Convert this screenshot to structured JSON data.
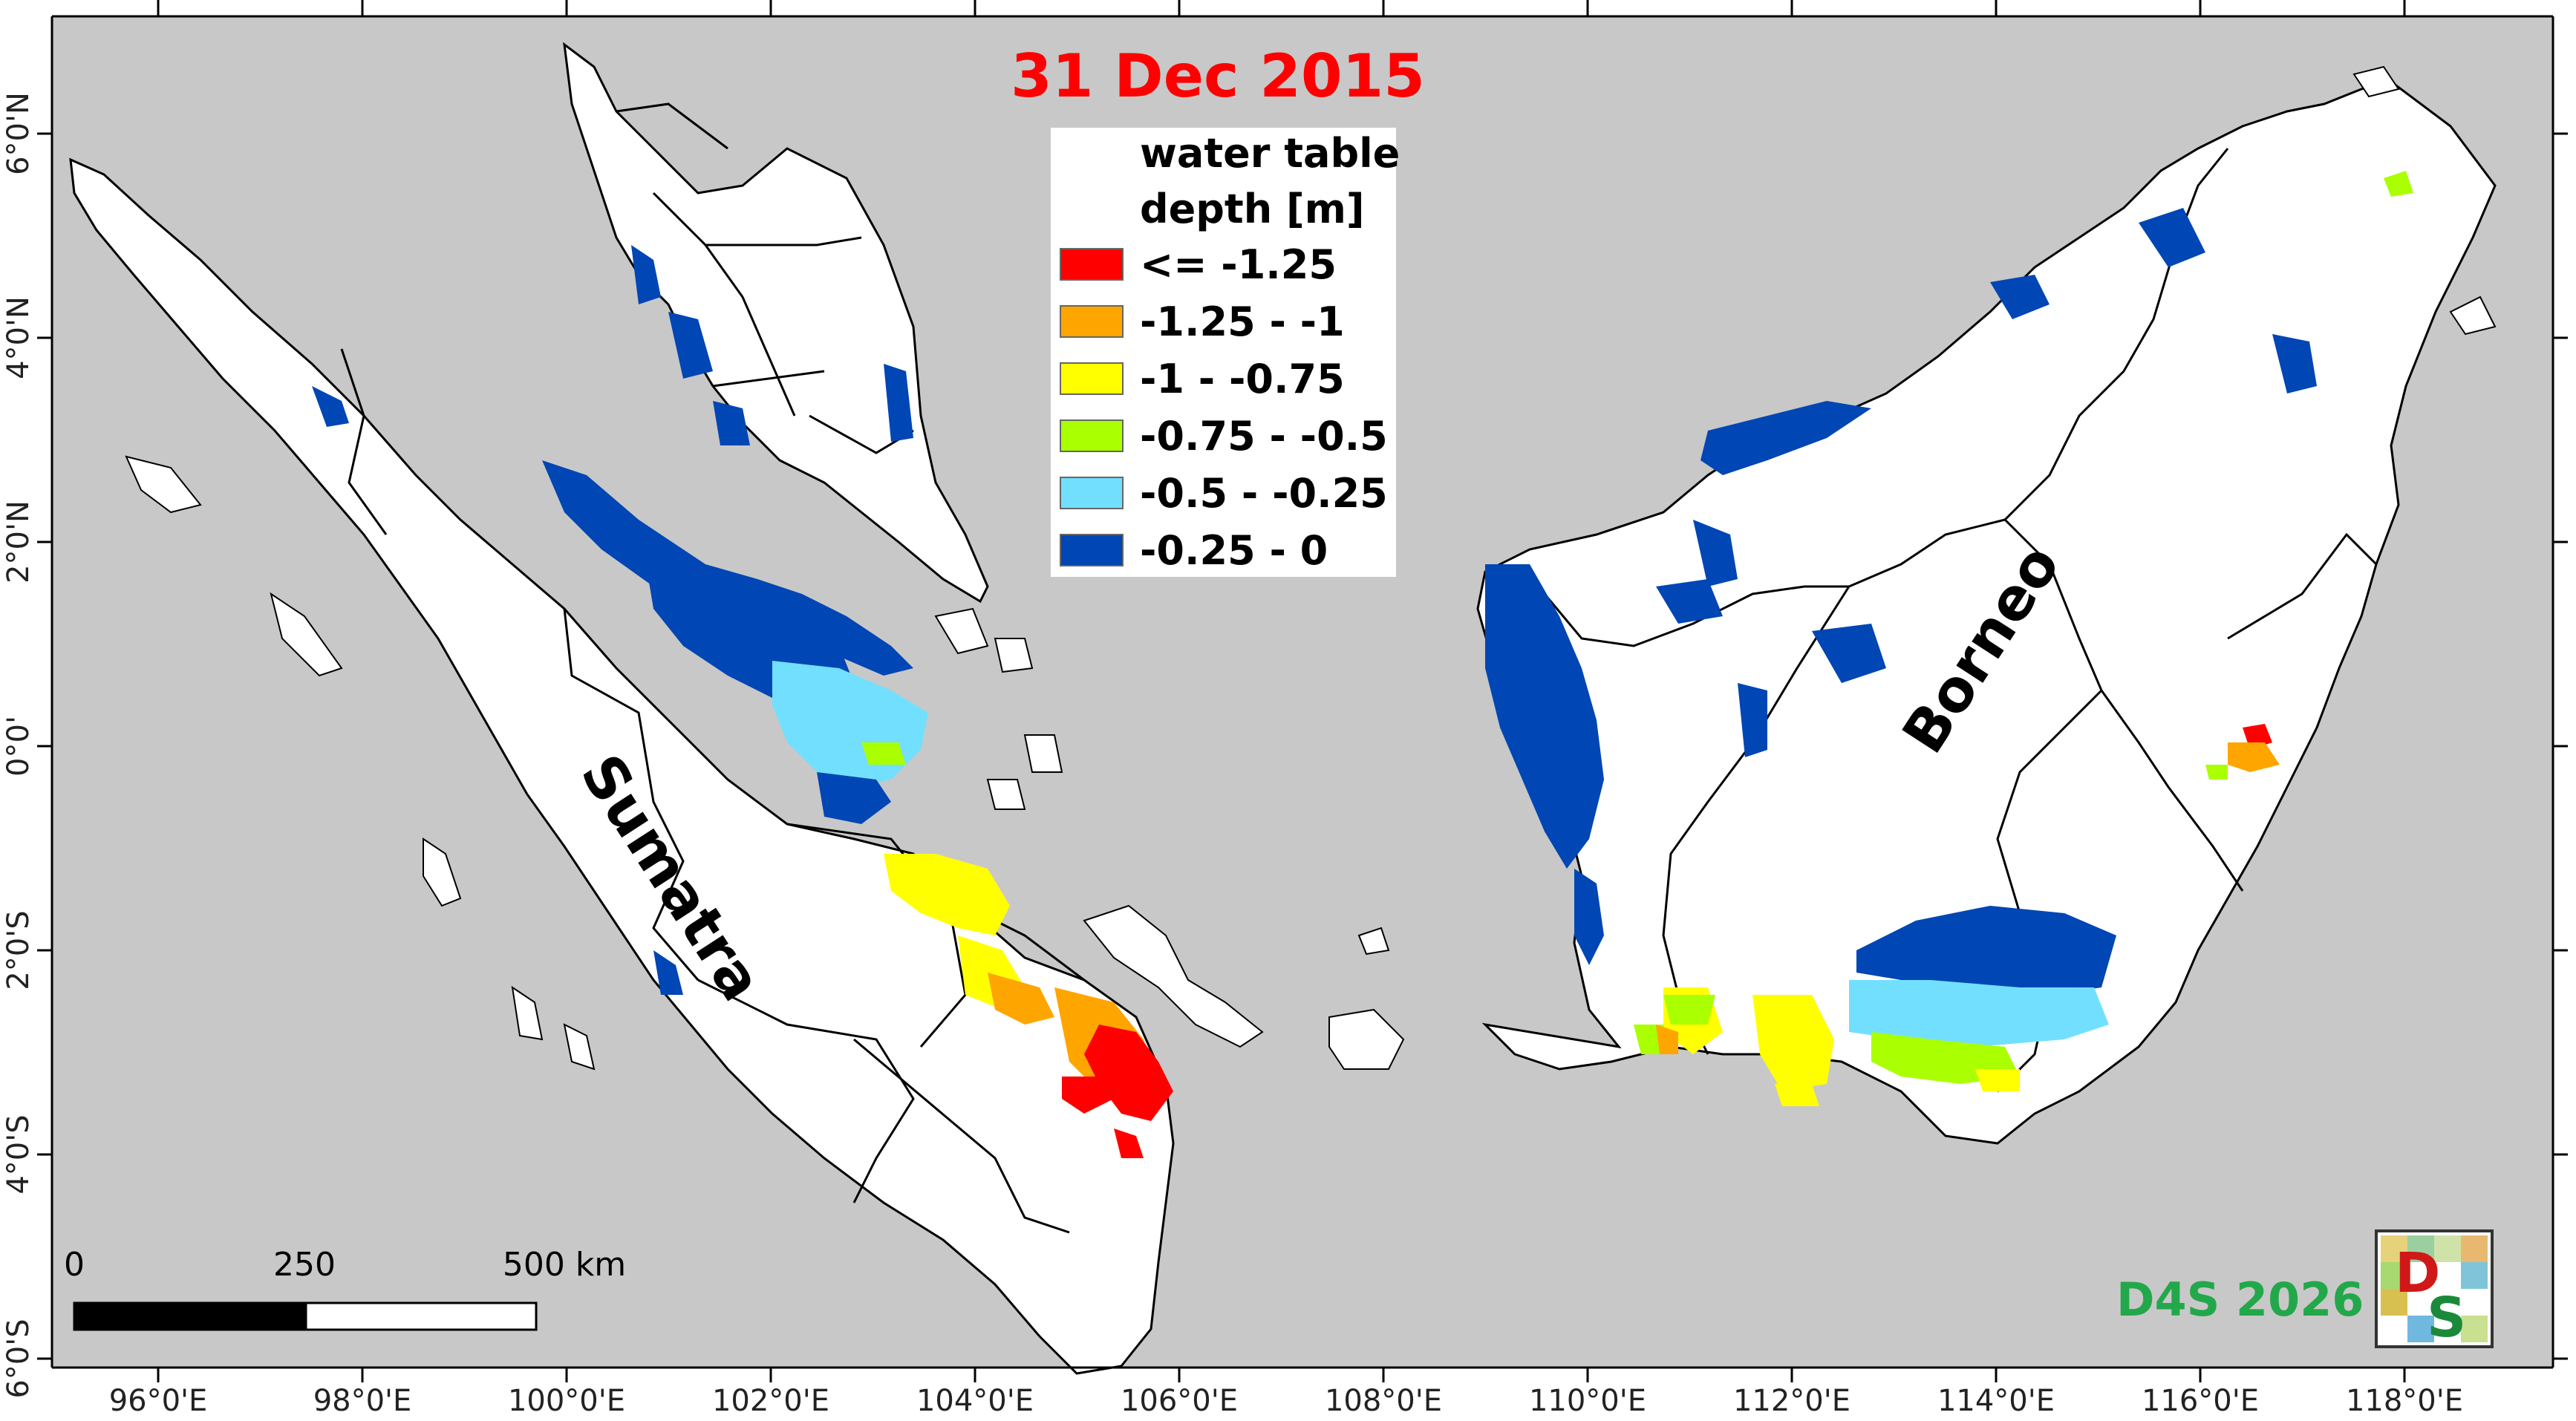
{
  "title": "31 Dec 2015",
  "legend": {
    "title_line1": "water table",
    "title_line2": "depth [m]",
    "classes": [
      {
        "label": "<= -1.25",
        "color": "#ff0000"
      },
      {
        "label": "-1.25 - -1",
        "color": "#ffa500"
      },
      {
        "label": "-1 - -0.75",
        "color": "#ffff00"
      },
      {
        "label": "-0.75 - -0.5",
        "color": "#aaff00"
      },
      {
        "label": "-0.5 - -0.25",
        "color": "#73dfff"
      },
      {
        "label": "-0.25 - 0",
        "color": "#0046b4"
      }
    ]
  },
  "axes": {
    "x_ticks": [
      "96°0'E",
      "98°0'E",
      "100°0'E",
      "102°0'E",
      "104°0'E",
      "106°0'E",
      "108°0'E",
      "110°0'E",
      "112°0'E",
      "114°0'E",
      "116°0'E",
      "118°0'E"
    ],
    "y_ticks": [
      "6°0'N",
      "4°0'N",
      "2°0'N",
      "0°0'",
      "2°0'S",
      "4°0'S",
      "6°0'S"
    ]
  },
  "labels": {
    "sumatra": "Sumatra",
    "borneo": "Borneo"
  },
  "scale_bar": {
    "tick_0": "0",
    "tick_mid": "250",
    "tick_end": "500 km"
  },
  "brand": {
    "text": "D4S 2026",
    "logo_letter_d": "D",
    "logo_letter_s": "S"
  },
  "colors": {
    "sea": "#c8c8c8",
    "land": "#ffffff",
    "peat_deep": "#0046b4",
    "brand_green": "#22a84a",
    "title_red": "#ff0000"
  }
}
